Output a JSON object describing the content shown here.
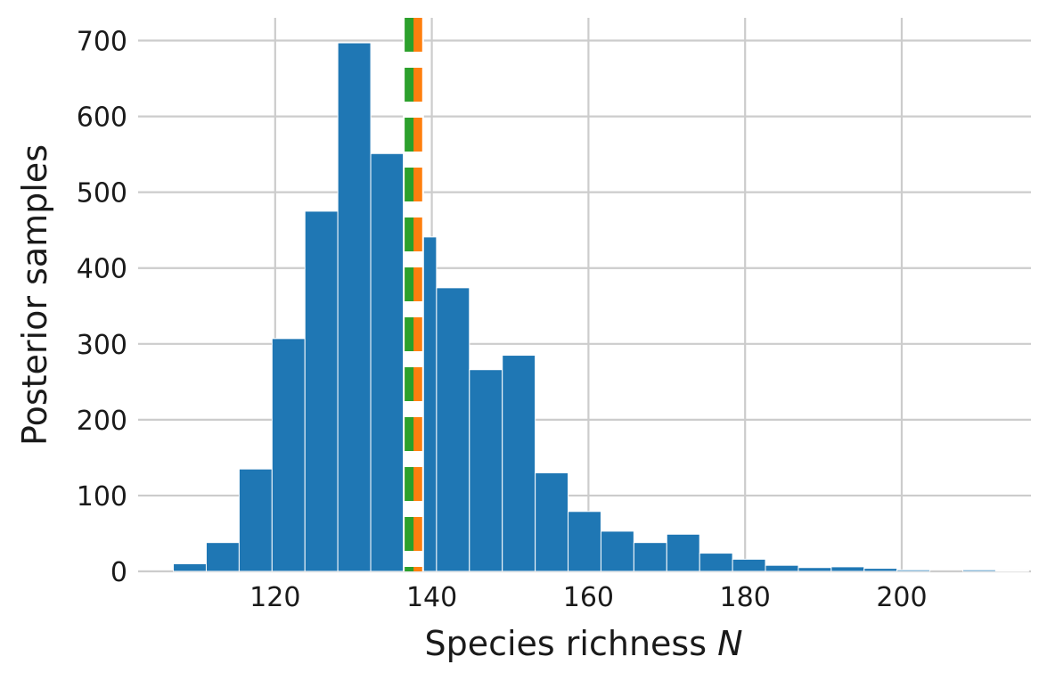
{
  "chart_data": {
    "type": "bar",
    "xlabel": "Species richness ",
    "xlabel_var": "N",
    "ylabel": "Posterior samples",
    "xlim": [
      102.5,
      216.5
    ],
    "ylim": [
      0,
      730
    ],
    "xticks": [
      120,
      140,
      160,
      180,
      200
    ],
    "yticks": [
      0,
      100,
      200,
      300,
      400,
      500,
      600,
      700
    ],
    "grid": true,
    "bar_color": "#1f77b4",
    "bin_edges": [
      107.0,
      111.2,
      115.4,
      119.6,
      123.8,
      128.0,
      132.2,
      136.4,
      140.6,
      144.8,
      149.0,
      153.2,
      157.4,
      161.6,
      165.8,
      170.0,
      174.2,
      178.4,
      182.6,
      186.8,
      191.0,
      195.2,
      199.4,
      203.6,
      207.8,
      212.0,
      216.2
    ],
    "values": [
      10,
      38,
      135,
      307,
      475,
      697,
      551,
      441,
      374,
      266,
      285,
      130,
      79,
      53,
      38,
      49,
      24,
      16,
      8,
      5,
      6,
      4,
      2,
      0,
      2,
      1
    ],
    "vlines": [
      {
        "x": 138.2,
        "color": "#ff7f0e",
        "style": "dashed"
      },
      {
        "x": 137.1,
        "color": "#2ca02c",
        "style": "dashed"
      }
    ]
  }
}
